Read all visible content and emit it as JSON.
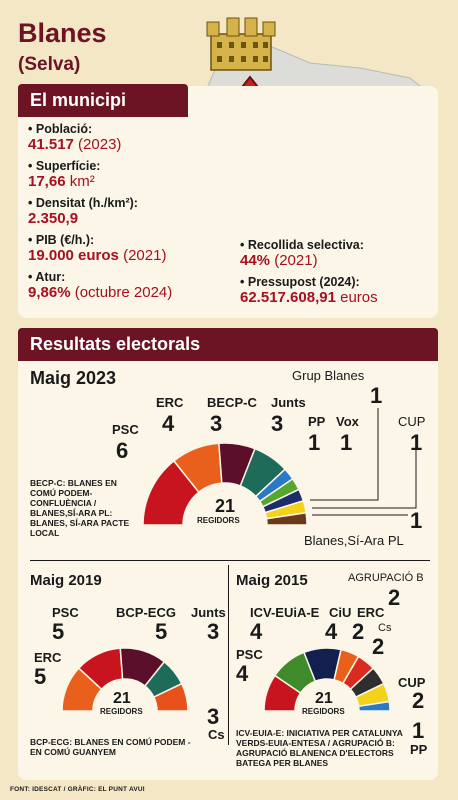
{
  "header": {
    "title": "Blanes",
    "subtitle": "(Selva)"
  },
  "municipi": {
    "heading": "El municipi",
    "poblacio_label": "Població:",
    "poblacio_value": "41.517",
    "poblacio_year": " (2023)",
    "superficie_label": "Superfície:",
    "superficie_value": "17,66",
    "superficie_unit": " km²",
    "densitat_label": "Densitat (h./km²):",
    "densitat_value": "2.350,9",
    "pib_label": "PIB (€/h.):",
    "pib_value": "19.000 euros",
    "pib_year": " (2021)",
    "atur_label": "Atur:",
    "atur_value": "9,86%",
    "atur_year": " (octubre 2024)",
    "recollida_label": "Recollida selectiva:",
    "recollida_value": "44%",
    "recollida_year": " (2021)",
    "pressupost_label": "Pressupost (2024):",
    "pressupost_value": "62.517.608,91",
    "pressupost_unit": " euros"
  },
  "results": {
    "heading": "Resultats electorals",
    "e2023": {
      "title": "Maig 2023",
      "total": "21",
      "regidors": "REGIDORS",
      "parties": [
        {
          "name": "PSC",
          "seats": 6,
          "color": "#c8141e"
        },
        {
          "name": "ERC",
          "seats": 4,
          "color": "#e8601c"
        },
        {
          "name": "BECP-C",
          "seats": 3,
          "color": "#5c0f2a"
        },
        {
          "name": "Junts",
          "seats": 3,
          "color": "#1f6b5a"
        },
        {
          "name": "PP",
          "seats": 1,
          "color": "#2a78c8"
        },
        {
          "name": "Vox",
          "seats": 1,
          "color": "#57a630"
        },
        {
          "name": "Grup Blanes",
          "seats": 1,
          "color": "#1b2d6b"
        },
        {
          "name": "CUP",
          "seats": 1,
          "color": "#f2d21a"
        },
        {
          "name": "Blanes,Sí-Ara PL",
          "seats": 1,
          "color": "#6b3a1a"
        }
      ],
      "note": "BECP-C: BLANES EN COMÚ PODEM-CONFLUÈNCIA / BLANES,SÍ-ARA PL: BLANES, SÍ-ARA PACTE LOCAL"
    },
    "e2019": {
      "title": "Maig 2019",
      "total": "21",
      "regidors": "REGIDORS",
      "parties": [
        {
          "name": "ERC",
          "seats": 5,
          "color": "#e8601c"
        },
        {
          "name": "PSC",
          "seats": 5,
          "color": "#c8141e"
        },
        {
          "name": "BCP-ECG",
          "seats": 5,
          "color": "#5c0f2a"
        },
        {
          "name": "Junts",
          "seats": 3,
          "color": "#1f6b5a"
        },
        {
          "name": "Cs",
          "seats": 3,
          "color": "#e8501c"
        }
      ],
      "note": "BCP-ECG: BLANES EN COMÚ PODEM - EN COMÚ GUANYEM"
    },
    "e2015": {
      "title": "Maig 2015",
      "total": "21",
      "regidors": "REGIDORS",
      "parties": [
        {
          "name": "PSC",
          "seats": 4,
          "color": "#c8141e"
        },
        {
          "name": "ICV-EUiA-E",
          "seats": 4,
          "color": "#3f8a2a"
        },
        {
          "name": "CiU",
          "seats": 4,
          "color": "#13204f"
        },
        {
          "name": "ERC",
          "seats": 2,
          "color": "#e8601c"
        },
        {
          "name": "Cs",
          "seats": 2,
          "color": "#d92c20"
        },
        {
          "name": "AGRUPACIÓ B",
          "seats": 2,
          "color": "#2e2e2e"
        },
        {
          "name": "CUP",
          "seats": 2,
          "color": "#f2d21a"
        },
        {
          "name": "PP",
          "seats": 1,
          "color": "#2a78c8"
        }
      ],
      "note": "ICV-EUIA-E: INICIATIVA PER CATALUNYA VERDS-EUIA-ENTESA / AGRUPACIÓ B: AGRUPACIÓ BLANENCA D'ELECTORS BATEGA PER BLANES"
    }
  },
  "footer": "FONT: IDESCAT / GRÀFIC: EL PUNT AVUI"
}
